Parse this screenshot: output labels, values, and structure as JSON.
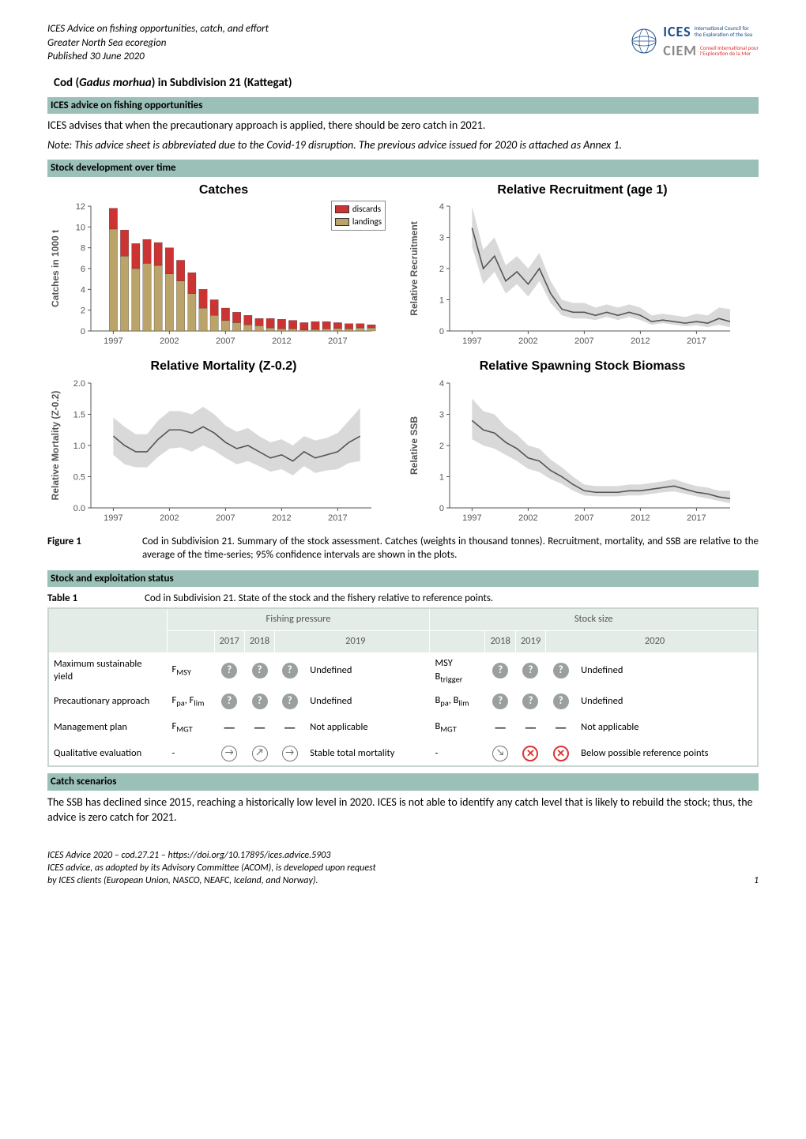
{
  "header": {
    "line1": "ICES Advice on fishing opportunities, catch, and effort",
    "line2": "Greater North Sea ecoregion",
    "line3": "Published 30 June 2020",
    "logo_ices": "ICES",
    "logo_ices_sub1": "International Council for",
    "logo_ices_sub2": "the Exploration of the Sea",
    "logo_ciem": "CIEM",
    "logo_ciem_sub1": "Conseil International pour",
    "logo_ciem_sub2": "l'Exploration de la Mer"
  },
  "title": "Cod (Gadus morhua) in Subdivision 21 (Kattegat)",
  "sections": {
    "s1": "ICES advice on fishing opportunities",
    "s2": "Stock development over time",
    "s3": "Stock and exploitation status",
    "s4": "Catch scenarios"
  },
  "paras": {
    "advice": "ICES advises that when the precautionary approach is applied, there should be zero catch in 2021.",
    "note": "Note: This advice sheet is abbreviated due to the Covid-19 disruption. The previous advice issued for 2020 is attached as Annex 1.",
    "catch_scen": "The SSB has declined since 2015, reaching a historically low level in 2020. ICES is not able to identify any catch level that is likely to rebuild the stock; thus, the advice is zero catch for 2021."
  },
  "figure1": {
    "label": "Figure 1",
    "caption": "Cod in Subdivision 21. Summary of the stock assessment. Catches (weights in thousand tonnes). Recruitment, mortality, and SSB are relative to the average of the time-series; 95% confidence intervals are shown in the plots."
  },
  "chart_colors": {
    "discards": "#cc3333",
    "landings": "#bba46a",
    "line": "#555555",
    "ci_fill": "#d0d0d0",
    "axis": "#555555",
    "bg": "#ffffff"
  },
  "chart_catches": {
    "title": "Catches",
    "type": "stacked-bar",
    "ylabel": "Catches in 1000 t",
    "xlim": [
      1995,
      2020
    ],
    "ylim": [
      0,
      12
    ],
    "ytick_step": 2,
    "xticks": [
      1997,
      2002,
      2007,
      2012,
      2017
    ],
    "legend": [
      "discards",
      "landings"
    ],
    "landings": [
      9.8,
      7.2,
      6.0,
      6.5,
      6.3,
      5.5,
      4.8,
      3.6,
      2.2,
      1.5,
      1.0,
      0.8,
      0.6,
      0.5,
      0.3,
      0.22,
      0.22,
      0.1,
      0.15,
      0.2,
      0.25,
      0.2,
      0.3,
      0.3
    ],
    "discards": [
      2.0,
      2.5,
      2.4,
      2.3,
      2.2,
      2.5,
      2.0,
      2.0,
      1.8,
      1.5,
      1.2,
      1.0,
      0.9,
      0.7,
      0.9,
      0.9,
      0.8,
      0.7,
      0.75,
      0.7,
      0.55,
      0.5,
      0.4,
      0.3
    ],
    "start_year": 1997,
    "title_fontsize": 16,
    "label_fontsize": 12,
    "tick_fontsize": 11
  },
  "chart_recruit": {
    "title": "Relative Recruitment (age 1)",
    "type": "line-ci",
    "ylabel": "Relative Recruitment",
    "xlim": [
      1995,
      2020
    ],
    "ylim": [
      0,
      4
    ],
    "ytick_step": 1,
    "xticks": [
      1997,
      2002,
      2007,
      2012,
      2017
    ],
    "years": [
      1997,
      1998,
      1999,
      2000,
      2001,
      2002,
      2003,
      2004,
      2005,
      2006,
      2007,
      2008,
      2009,
      2010,
      2011,
      2012,
      2013,
      2014,
      2015,
      2016,
      2017,
      2018,
      2019,
      2020
    ],
    "values": [
      3.3,
      2.0,
      2.4,
      1.6,
      1.9,
      1.5,
      2.0,
      1.2,
      0.7,
      0.6,
      0.6,
      0.5,
      0.6,
      0.5,
      0.6,
      0.5,
      0.3,
      0.35,
      0.3,
      0.25,
      0.3,
      0.25,
      0.4,
      0.3
    ],
    "ci_lo": [
      2.7,
      1.5,
      1.9,
      1.2,
      1.5,
      1.1,
      1.6,
      0.9,
      0.5,
      0.4,
      0.4,
      0.35,
      0.45,
      0.35,
      0.45,
      0.35,
      0.2,
      0.25,
      0.2,
      0.15,
      0.18,
      0.12,
      0.2,
      0.12
    ],
    "ci_hi": [
      4.0,
      2.6,
      3.0,
      2.1,
      2.4,
      2.0,
      2.5,
      1.6,
      1.0,
      0.9,
      0.9,
      0.75,
      0.85,
      0.75,
      0.85,
      0.75,
      0.5,
      0.55,
      0.5,
      0.45,
      0.55,
      0.5,
      0.75,
      0.7
    ],
    "title_fontsize": 16,
    "label_fontsize": 12,
    "tick_fontsize": 11
  },
  "chart_mortality": {
    "title": "Relative Mortality (Z-0.2)",
    "type": "line-ci",
    "ylabel": "Relative Mortality (Z-0.2)",
    "xlim": [
      1995,
      2020
    ],
    "ylim": [
      0,
      2
    ],
    "ytick_step": 0.5,
    "xticks": [
      1997,
      2002,
      2007,
      2012,
      2017
    ],
    "years": [
      1997,
      1998,
      1999,
      2000,
      2001,
      2002,
      2003,
      2004,
      2005,
      2006,
      2007,
      2008,
      2009,
      2010,
      2011,
      2012,
      2013,
      2014,
      2015,
      2016,
      2017,
      2018,
      2019
    ],
    "values": [
      1.15,
      1.0,
      0.9,
      0.9,
      1.1,
      1.25,
      1.25,
      1.2,
      1.3,
      1.2,
      1.05,
      0.95,
      1.0,
      0.9,
      0.8,
      0.85,
      0.75,
      0.9,
      0.8,
      0.85,
      0.9,
      1.05,
      1.15
    ],
    "ci_lo": [
      0.85,
      0.7,
      0.65,
      0.65,
      0.82,
      0.95,
      0.97,
      0.9,
      1.0,
      0.92,
      0.8,
      0.7,
      0.75,
      0.67,
      0.58,
      0.62,
      0.52,
      0.67,
      0.56,
      0.6,
      0.62,
      0.72,
      0.75
    ],
    "ci_hi": [
      1.45,
      1.3,
      1.18,
      1.18,
      1.4,
      1.55,
      1.55,
      1.5,
      1.62,
      1.5,
      1.32,
      1.22,
      1.28,
      1.15,
      1.05,
      1.1,
      1.0,
      1.15,
      1.08,
      1.12,
      1.2,
      1.4,
      1.6
    ],
    "title_fontsize": 16,
    "label_fontsize": 12,
    "tick_fontsize": 11
  },
  "chart_ssb": {
    "title": "Relative Spawning Stock Biomass",
    "type": "line-ci",
    "ylabel": "Relative SSB",
    "xlim": [
      1995,
      2020
    ],
    "ylim": [
      0,
      4
    ],
    "ytick_step": 1,
    "xticks": [
      1997,
      2002,
      2007,
      2012,
      2017
    ],
    "years": [
      1997,
      1998,
      1999,
      2000,
      2001,
      2002,
      2003,
      2004,
      2005,
      2006,
      2007,
      2008,
      2009,
      2010,
      2011,
      2012,
      2013,
      2014,
      2015,
      2016,
      2017,
      2018,
      2019,
      2020
    ],
    "values": [
      2.8,
      2.5,
      2.4,
      2.1,
      1.9,
      1.6,
      1.5,
      1.2,
      1.0,
      0.75,
      0.55,
      0.5,
      0.5,
      0.5,
      0.55,
      0.55,
      0.6,
      0.65,
      0.7,
      0.6,
      0.5,
      0.45,
      0.35,
      0.3
    ],
    "ci_lo": [
      2.2,
      2.0,
      1.9,
      1.7,
      1.5,
      1.25,
      1.15,
      0.92,
      0.77,
      0.55,
      0.4,
      0.37,
      0.37,
      0.37,
      0.4,
      0.4,
      0.45,
      0.5,
      0.53,
      0.45,
      0.37,
      0.3,
      0.22,
      0.15
    ],
    "ci_hi": [
      3.5,
      3.1,
      3.0,
      2.6,
      2.35,
      2.0,
      1.9,
      1.55,
      1.3,
      1.0,
      0.75,
      0.7,
      0.7,
      0.7,
      0.75,
      0.75,
      0.8,
      0.85,
      0.92,
      0.8,
      0.7,
      0.65,
      0.55,
      0.55
    ],
    "title_fontsize": 16,
    "label_fontsize": 12,
    "tick_fontsize": 11
  },
  "table1": {
    "label": "Table 1",
    "caption": "Cod in Subdivision 21. State of the stock and the fishery relative to reference points.",
    "group_left": "Fishing pressure",
    "group_right": "Stock size",
    "yrs_left": [
      "2017",
      "2018",
      "2019"
    ],
    "yrs_right": [
      "2018",
      "2019",
      "2020"
    ],
    "rows": [
      {
        "name": "Maximum sustainable yield",
        "fsym_html": "F<sub>MSY</sub>",
        "l_icons": [
          "q",
          "q",
          "q"
        ],
        "l_desc": "Undefined",
        "bsym_html": "MSY B<sub>trigger</sub>",
        "r_icons": [
          "q",
          "q",
          "q"
        ],
        "r_desc": "Undefined"
      },
      {
        "name": "Precautionary approach",
        "fsym_html": "F<sub>pa</sub>, F<sub>lim</sub>",
        "l_icons": [
          "q",
          "q",
          "q"
        ],
        "l_desc": "Undefined",
        "bsym_html": "B<sub>pa</sub>, B<sub>lim</sub>",
        "r_icons": [
          "q",
          "q",
          "q"
        ],
        "r_desc": "Undefined"
      },
      {
        "name": "Management plan",
        "fsym_html": "F<sub>MGT</sub>",
        "l_icons": [
          "dash",
          "dash",
          "dash"
        ],
        "l_desc": "Not applicable",
        "bsym_html": "B<sub>MGT</sub>",
        "r_icons": [
          "dash",
          "dash",
          "dash"
        ],
        "r_desc": "Not applicable"
      },
      {
        "name": "Qualitative evaluation",
        "fsym_html": "-",
        "l_icons": [
          "arr-r",
          "arr-ur",
          "arr-r"
        ],
        "l_desc": "Stable total mortality",
        "bsym_html": "-",
        "r_icons": [
          "arr-dr",
          "x",
          "x"
        ],
        "r_desc": "Below possible reference points"
      }
    ]
  },
  "footer": {
    "l1": "ICES Advice 2020 – cod.27.21 – https://doi.org/10.17895/ices.advice.5903",
    "l2": "ICES advice, as adopted by its Advisory Committee (ACOM), is developed upon request",
    "l3": "by ICES clients (European Union, NASCO, NEAFC, Iceland, and Norway).",
    "page": "1"
  }
}
